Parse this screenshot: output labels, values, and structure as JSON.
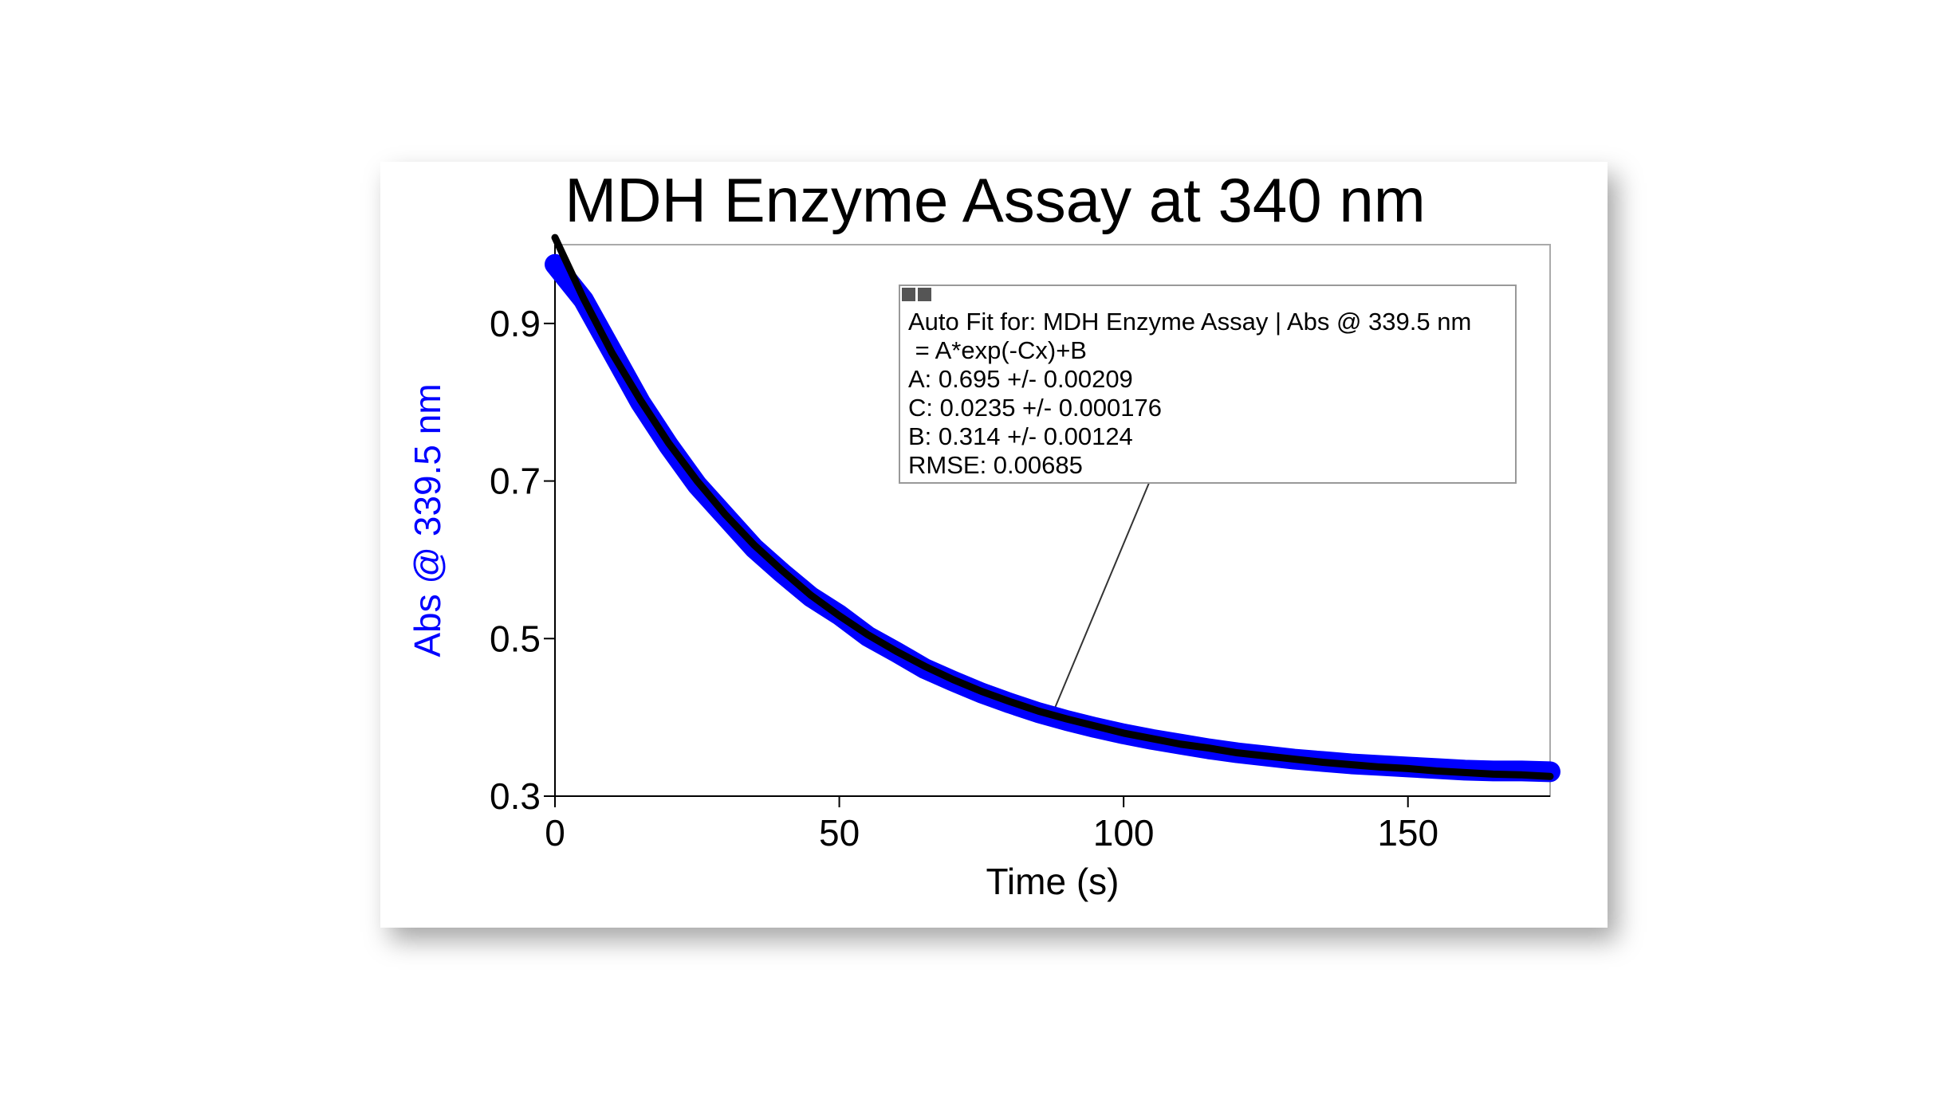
{
  "chart_data": {
    "type": "line",
    "title": "MDH Enzyme Assay at 340 nm",
    "x_label": "Time (s)",
    "y_label": "Abs @ 339.5 nm",
    "y_label_color": "#0000ff",
    "x": [
      0,
      5,
      10,
      15,
      20,
      25,
      30,
      35,
      40,
      45,
      50,
      55,
      60,
      65,
      70,
      75,
      80,
      85,
      90,
      95,
      100,
      105,
      110,
      115,
      120,
      125,
      130,
      135,
      140,
      145,
      150,
      155,
      160,
      165,
      170,
      175
    ],
    "series": [
      {
        "color": "#0000ff",
        "values": [
          0.975,
          0.93,
          0.865,
          0.8,
          0.745,
          0.695,
          0.655,
          0.615,
          0.583,
          0.553,
          0.53,
          0.503,
          0.483,
          0.462,
          0.446,
          0.431,
          0.418,
          0.406,
          0.396,
          0.387,
          0.379,
          0.372,
          0.366,
          0.36,
          0.355,
          0.351,
          0.347,
          0.344,
          0.341,
          0.339,
          0.337,
          0.335,
          0.333,
          0.332,
          0.332,
          0.331
        ]
      },
      {
        "color": "#000000",
        "values": [
          1.009,
          0.932,
          0.863,
          0.803,
          0.748,
          0.7,
          0.657,
          0.619,
          0.586,
          0.555,
          0.529,
          0.505,
          0.484,
          0.465,
          0.448,
          0.433,
          0.42,
          0.408,
          0.398,
          0.389,
          0.38,
          0.373,
          0.366,
          0.361,
          0.355,
          0.351,
          0.347,
          0.343,
          0.34,
          0.337,
          0.335,
          0.332,
          0.33,
          0.328,
          0.327,
          0.325
        ]
      }
    ],
    "xlim": [
      0,
      175
    ],
    "xticks": [
      0,
      50,
      100,
      150
    ],
    "ylim": [
      0.3,
      1.0
    ],
    "yticks": [
      0.3,
      0.5,
      0.7,
      0.9
    ],
    "annotation": {
      "lines": [
        "Auto Fit for: MDH Enzyme Assay | Abs @ 339.5 nm",
        " = A*exp(-Cx)+B",
        "A: 0.695 +/- 0.00209",
        "C: 0.0235 +/- 0.000176",
        "B: 0.314 +/- 0.00124",
        "RMSE: 0.00685"
      ]
    }
  }
}
